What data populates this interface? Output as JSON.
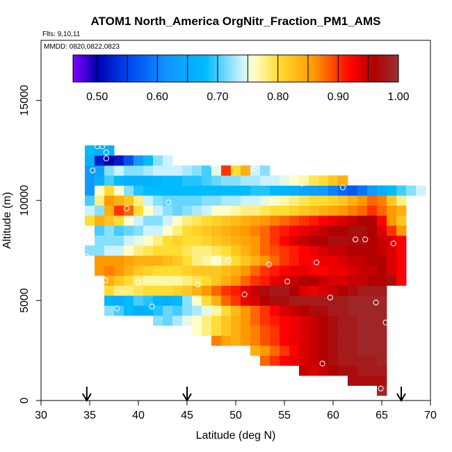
{
  "chart_data": {
    "type": "heatmap",
    "title": "ATOM1 North_America OrgNitr_Fraction_PM1_AMS",
    "flights_label": "Flts: 9,10,11",
    "dates_label": "MMDD: 0820,0822,0823",
    "xlabel": "Latitude (deg N)",
    "ylabel": "Altitude (m)",
    "xlim": [
      30,
      70
    ],
    "ylim": [
      0,
      18000
    ],
    "xticks": [
      "30",
      "35",
      "40",
      "45",
      "50",
      "55",
      "60",
      "65",
      "70"
    ],
    "xtick_values": [
      30,
      35,
      40,
      45,
      50,
      55,
      60,
      65,
      70
    ],
    "yticks": [
      "0",
      "5000",
      "10000",
      "15000"
    ],
    "ytick_values": [
      0,
      5000,
      10000,
      15000
    ],
    "colorbar": {
      "range": [
        0.46,
        1.0
      ],
      "tick_labels": [
        "0.50",
        "0.60",
        "0.70",
        "0.80",
        "0.90",
        "1.00"
      ],
      "tick_values": [
        0.5,
        0.6,
        0.7,
        0.8,
        0.9,
        1.0
      ],
      "stops": [
        "#8000ff",
        "#0000b0",
        "#0044ee",
        "#1199ff",
        "#00bbff",
        "#ccf2ff",
        "#ffffcc",
        "#ffdd33",
        "#ff9900",
        "#ff0000",
        "#b00000",
        "#993333"
      ],
      "stop_values": [
        0.46,
        0.5,
        0.55,
        0.62,
        0.68,
        0.74,
        0.76,
        0.8,
        0.86,
        0.92,
        0.96,
        1.0
      ]
    },
    "grid": {
      "lat_start": 35,
      "lat_step": 1,
      "alt_start": 500,
      "alt_step": 500
    },
    "rows": [
      {
        "alt": 500,
        "lat0": 65,
        "values": [
          0.99
        ]
      },
      {
        "alt": 1000,
        "lat0": 62,
        "values": [
          0.97,
          0.97,
          0.97,
          0.97
        ]
      },
      {
        "alt": 1500,
        "lat0": 57,
        "values": [
          0.95,
          0.94,
          0.95,
          0.96,
          0.97,
          0.97,
          0.98,
          0.98,
          0.98
        ]
      },
      {
        "alt": 2000,
        "lat0": 53,
        "values": [
          0.88,
          0.9,
          0.92,
          0.93,
          0.94,
          0.95,
          0.96,
          0.97,
          0.98,
          0.98,
          0.98,
          0.98,
          0.99
        ]
      },
      {
        "alt": 2500,
        "lat0": 52,
        "values": [
          0.84,
          0.86,
          0.88,
          0.9,
          0.92,
          0.94,
          0.95,
          0.96,
          0.97,
          0.98,
          0.98,
          0.99,
          0.99,
          0.99
        ]
      },
      {
        "alt": 3000,
        "lat0": 48,
        "values": [
          0.87,
          0.85,
          0.84,
          0.86,
          0.87,
          0.89,
          0.9,
          0.92,
          0.93,
          0.94,
          0.95,
          0.96,
          0.97,
          0.98,
          0.98,
          0.99,
          0.99,
          0.99
        ]
      },
      {
        "alt": 3500,
        "lat0": 46,
        "values": [
          0.76,
          0.78,
          0.8,
          0.82,
          0.84,
          0.86,
          0.87,
          0.89,
          0.9,
          0.92,
          0.93,
          0.94,
          0.95,
          0.96,
          0.97,
          0.98,
          0.98,
          0.99,
          0.99,
          0.99
        ]
      },
      {
        "alt": 4000,
        "lat0": 42,
        "values": [
          0.72,
          0.71,
          0.73,
          0.75,
          0.76,
          0.78,
          0.8,
          0.82,
          0.84,
          0.86,
          0.88,
          0.9,
          0.91,
          0.92,
          0.93,
          0.94,
          0.95,
          0.96,
          0.97,
          0.98,
          0.98,
          0.99,
          0.99,
          0.99
        ]
      },
      {
        "alt": 4500,
        "lat0": 37,
        "values": [
          0.72,
          0.7,
          0.68,
          0.66,
          0.67,
          0.69,
          0.71,
          0.7,
          0.72,
          0.73,
          0.75,
          0.77,
          0.8,
          0.83,
          0.86,
          0.88,
          0.9,
          0.92,
          0.94,
          0.95,
          0.96,
          0.97,
          0.97,
          0.98,
          0.98,
          0.99,
          0.99,
          0.99,
          0.99
        ]
      },
      {
        "alt": 5000,
        "lat0": 37,
        "values": [
          0.67,
          0.66,
          0.68,
          0.7,
          0.69,
          0.67,
          0.66,
          0.68,
          0.72,
          0.76,
          0.8,
          0.84,
          0.88,
          0.9,
          0.93,
          0.94,
          0.96,
          0.97,
          0.97,
          0.98,
          0.98,
          0.98,
          0.98,
          0.98,
          0.98,
          0.99,
          0.99,
          0.99,
          0.99
        ]
      },
      {
        "alt": 5500,
        "lat0": 37,
        "values": [
          0.8,
          0.78,
          0.78,
          0.79,
          0.8,
          0.8,
          0.8,
          0.81,
          0.82,
          0.84,
          0.86,
          0.88,
          0.9,
          0.91,
          0.93,
          0.95,
          0.97,
          0.98,
          0.98,
          0.96,
          0.94,
          0.93,
          0.94,
          0.95,
          0.96,
          0.97,
          0.98,
          0.98,
          0.98
        ]
      },
      {
        "alt": 6000,
        "lat0": 37,
        "values": [
          0.84,
          0.82,
          0.8,
          0.78,
          0.77,
          0.77,
          0.77,
          0.77,
          0.78,
          0.79,
          0.8,
          0.82,
          0.84,
          0.86,
          0.88,
          0.9,
          0.91,
          0.93,
          0.94,
          0.95,
          0.96,
          0.96,
          0.95,
          0.94,
          0.94,
          0.95,
          0.95,
          0.96,
          0.96,
          0.97,
          0.92
        ]
      },
      {
        "alt": 6500,
        "lat0": 36,
        "values": [
          0.86,
          0.87,
          0.86,
          0.84,
          0.82,
          0.81,
          0.8,
          0.8,
          0.8,
          0.81,
          0.82,
          0.82,
          0.82,
          0.83,
          0.84,
          0.86,
          0.88,
          0.9,
          0.91,
          0.92,
          0.93,
          0.93,
          0.92,
          0.92,
          0.93,
          0.93,
          0.94,
          0.95,
          0.95,
          0.96,
          0.94,
          0.92
        ]
      },
      {
        "alt": 7000,
        "lat0": 36,
        "values": [
          0.86,
          0.86,
          0.86,
          0.85,
          0.84,
          0.84,
          0.84,
          0.83,
          0.82,
          0.8,
          0.78,
          0.77,
          0.76,
          0.78,
          0.8,
          0.82,
          0.84,
          0.86,
          0.88,
          0.9,
          0.91,
          0.92,
          0.92,
          0.93,
          0.93,
          0.94,
          0.95,
          0.95,
          0.96,
          0.96,
          0.94,
          0.92
        ]
      },
      {
        "alt": 7500,
        "lat0": 35,
        "values": [
          0.72,
          0.72,
          0.74,
          0.74,
          0.76,
          0.78,
          0.79,
          0.8,
          0.8,
          0.8,
          0.79,
          0.78,
          0.78,
          0.79,
          0.8,
          0.82,
          0.84,
          0.86,
          0.88,
          0.89,
          0.9,
          0.91,
          0.92,
          0.93,
          0.94,
          0.95,
          0.95,
          0.96,
          0.96,
          0.96,
          0.95,
          0.94,
          0.92
        ]
      },
      {
        "alt": 8000,
        "lat0": 36,
        "values": [
          0.72,
          0.72,
          0.72,
          0.74,
          0.75,
          0.76,
          0.78,
          0.8,
          0.81,
          0.8,
          0.8,
          0.81,
          0.82,
          0.83,
          0.84,
          0.85,
          0.86,
          0.88,
          0.9,
          0.92,
          0.94,
          0.95,
          0.96,
          0.96,
          0.97,
          0.97,
          0.97,
          0.97,
          0.96,
          0.95,
          0.94,
          0.92
        ]
      },
      {
        "alt": 8500,
        "lat0": 36,
        "values": [
          0.7,
          0.72,
          0.7,
          0.71,
          0.72,
          0.74,
          0.74,
          0.76,
          0.78,
          0.8,
          0.81,
          0.82,
          0.83,
          0.84,
          0.85,
          0.86,
          0.87,
          0.88,
          0.9,
          0.91,
          0.92,
          0.93,
          0.94,
          0.95,
          0.96,
          0.96,
          0.97,
          0.97,
          0.96,
          0.94,
          0.9,
          0.86
        ]
      },
      {
        "alt": 9000,
        "lat0": 35,
        "values": [
          0.8,
          0.84,
          0.82,
          0.8,
          0.76,
          0.74,
          0.72,
          0.72,
          0.74,
          0.76,
          0.78,
          0.79,
          0.8,
          0.81,
          0.82,
          0.83,
          0.84,
          0.85,
          0.86,
          0.87,
          0.88,
          0.89,
          0.9,
          0.91,
          0.92,
          0.93,
          0.94,
          0.95,
          0.96,
          0.96,
          0.92,
          0.86,
          0.82
        ]
      },
      {
        "alt": 9500,
        "lat0": 35,
        "values": [
          0.74,
          0.72,
          0.84,
          0.9,
          0.88,
          0.8,
          0.76,
          0.74,
          0.72,
          0.71,
          0.72,
          0.73,
          0.74,
          0.76,
          0.76,
          0.77,
          0.78,
          0.78,
          0.79,
          0.8,
          0.8,
          0.81,
          0.82,
          0.83,
          0.84,
          0.85,
          0.86,
          0.87,
          0.88,
          0.9,
          0.88,
          0.86,
          0.84
        ]
      },
      {
        "alt": 10000,
        "lat0": 35,
        "values": [
          0.7,
          0.78,
          0.86,
          0.84,
          0.82,
          0.78,
          0.74,
          0.72,
          0.71,
          0.71,
          0.71,
          0.71,
          0.72,
          0.72,
          0.73,
          0.73,
          0.74,
          0.74,
          0.75,
          0.76,
          0.77,
          0.78,
          0.79,
          0.8,
          0.8,
          0.81,
          0.82,
          0.84,
          0.86,
          0.88,
          0.87,
          0.82,
          0.78
        ]
      },
      {
        "alt": 10500,
        "lat0": 35,
        "values": [
          0.62,
          0.76,
          0.8,
          0.76,
          0.72,
          0.69,
          0.68,
          0.68,
          0.68,
          0.68,
          0.68,
          0.68,
          0.68,
          0.68,
          0.68,
          0.68,
          0.68,
          0.69,
          0.69,
          0.68,
          0.67,
          0.66,
          0.64,
          0.63,
          0.62,
          0.6,
          0.58,
          0.57,
          0.59,
          0.62,
          0.66,
          0.68,
          0.7,
          0.72,
          0.74
        ]
      },
      {
        "alt": 11000,
        "lat0": 35,
        "values": [
          0.62,
          0.66,
          0.7,
          0.68,
          0.66,
          0.66,
          0.66,
          0.67,
          0.68,
          0.68,
          0.69,
          0.69,
          0.7,
          0.71,
          0.72,
          0.72,
          0.73,
          0.73,
          0.74,
          0.74,
          0.75,
          0.76,
          0.77,
          0.79,
          0.8,
          0.82,
          0.84
        ]
      },
      {
        "alt": 11500,
        "lat0": 35,
        "values": [
          0.62,
          0.64,
          0.72,
          0.74,
          0.72,
          0.72,
          0.73,
          0.74,
          0.74,
          0.74,
          0.73,
          0.72,
          0.7,
          0.75,
          0.9,
          0.8,
          0.84,
          0.74,
          0.72
        ]
      },
      {
        "alt": 12000,
        "lat0": 35,
        "values": [
          0.66,
          0.52,
          0.5,
          0.52,
          0.56,
          0.62,
          0.68,
          0.72,
          0.74
        ]
      },
      {
        "alt": 12500,
        "lat0": 35,
        "values": [
          0.68,
          0.66,
          0.66
        ]
      }
    ],
    "sample_points": [
      {
        "lat": 35.3,
        "alt": 11500
      },
      {
        "lat": 35.8,
        "alt": 12700
      },
      {
        "lat": 36.3,
        "alt": 12700
      },
      {
        "lat": 36.7,
        "alt": 12400
      },
      {
        "lat": 36.7,
        "alt": 12100
      },
      {
        "lat": 34.7,
        "alt": 7200
      },
      {
        "lat": 36.6,
        "alt": 6000
      },
      {
        "lat": 37.8,
        "alt": 4600
      },
      {
        "lat": 38.8,
        "alt": 9600
      },
      {
        "lat": 40.0,
        "alt": 5900
      },
      {
        "lat": 41.4,
        "alt": 4700
      },
      {
        "lat": 43.1,
        "alt": 9900
      },
      {
        "lat": 46.1,
        "alt": 5800
      },
      {
        "lat": 47.6,
        "alt": 11800
      },
      {
        "lat": 49.3,
        "alt": 7000
      },
      {
        "lat": 50.9,
        "alt": 5300
      },
      {
        "lat": 51.9,
        "alt": 11600
      },
      {
        "lat": 53.4,
        "alt": 6800
      },
      {
        "lat": 55.3,
        "alt": 5950
      },
      {
        "lat": 56.8,
        "alt": 10850
      },
      {
        "lat": 58.3,
        "alt": 6900
      },
      {
        "lat": 59.7,
        "alt": 5150
      },
      {
        "lat": 61.0,
        "alt": 10650
      },
      {
        "lat": 62.3,
        "alt": 8050
      },
      {
        "lat": 63.3,
        "alt": 8050
      },
      {
        "lat": 64.4,
        "alt": 4900
      },
      {
        "lat": 65.4,
        "alt": 3900
      },
      {
        "lat": 66.2,
        "alt": 7850
      },
      {
        "lat": 58.9,
        "alt": 1850
      },
      {
        "lat": 64.9,
        "alt": 600
      }
    ],
    "flight_arrows": [
      34.7,
      45.0,
      67.0
    ]
  }
}
